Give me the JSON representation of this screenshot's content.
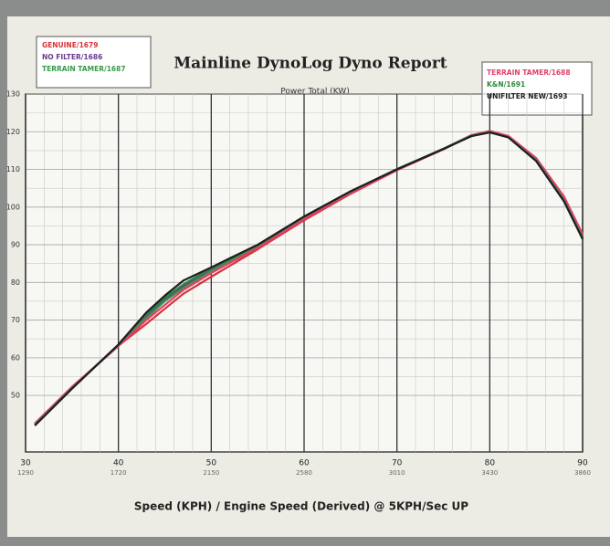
{
  "chart_data": {
    "type": "line",
    "title": "Mainline DynoLog Dyno Report",
    "subtitle": "Power Total (KW)",
    "x_label": "Speed (KPH) / Engine Speed (Derived) @ 5KPH/Sec UP",
    "x": [
      31,
      35,
      40,
      43,
      45,
      47,
      50,
      55,
      60,
      65,
      70,
      75,
      78,
      80,
      82,
      85,
      88,
      90
    ],
    "series": [
      {
        "name": "GENUINE/1679",
        "color": "#d8323a",
        "legend": "left",
        "values": [
          42.5,
          52.2,
          63.2,
          69,
          73,
          77,
          81.5,
          88.8,
          96.5,
          103.5,
          109.8,
          115.3,
          119,
          120.2,
          118.8,
          112.8,
          102.5,
          92.5
        ]
      },
      {
        "name": "NO FILTER/1686",
        "color": "#6a3a8c",
        "legend": "left",
        "values": [
          42.3,
          52,
          63.4,
          71,
          75.5,
          79,
          83.5,
          89.6,
          97.3,
          104,
          110,
          115.5,
          119,
          120,
          118.6,
          112.6,
          102,
          92
        ]
      },
      {
        "name": "TERRAIN TAMER/1687",
        "color": "#3a9a4a",
        "legend": "left",
        "values": [
          42.4,
          52.1,
          63.3,
          70.5,
          75,
          78.5,
          83,
          89.4,
          97,
          103.8,
          110,
          115.4,
          118.9,
          120,
          118.7,
          112.5,
          102.2,
          92.2
        ]
      },
      {
        "name": "TERRAIN TAMER/1688",
        "color": "#e0406a",
        "legend": "right",
        "values": [
          42.6,
          52.3,
          63.1,
          70,
          74,
          78,
          82.5,
          89.2,
          96.8,
          103.7,
          109.9,
          115.4,
          119.1,
          120.1,
          118.9,
          113,
          102.8,
          92.8
        ]
      },
      {
        "name": "K&N/1691",
        "color": "#2f8a3e",
        "legend": "right",
        "values": [
          42.2,
          51.9,
          63.4,
          71.5,
          76,
          79.5,
          83.8,
          89.8,
          97.4,
          104.1,
          110.1,
          115.5,
          118.9,
          119.9,
          118.5,
          112.4,
          101.8,
          91.8
        ]
      },
      {
        "name": "UNIFILTER NEW/1693",
        "color": "#1e1e22",
        "legend": "right",
        "values": [
          42,
          51.8,
          63.5,
          72,
          76.5,
          80.5,
          84,
          90,
          97.5,
          104.2,
          110,
          115.4,
          118.8,
          119.8,
          118.5,
          112.2,
          101.5,
          91.5
        ]
      }
    ],
    "xlim": [
      30,
      90
    ],
    "xticks": [
      30,
      40,
      50,
      60,
      70,
      80,
      90
    ],
    "xtick_sublabels": [
      "1290",
      "1720",
      "2150",
      "2580",
      "3010",
      "3430",
      "3860"
    ],
    "ylim": [
      35,
      130
    ],
    "yticks": [
      50,
      60,
      70,
      80,
      90,
      100,
      110,
      120,
      130
    ],
    "grid": true
  }
}
